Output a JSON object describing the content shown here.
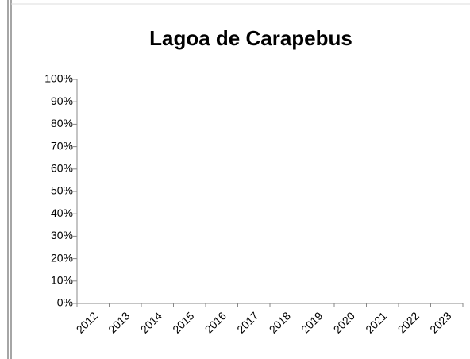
{
  "chart_data": {
    "type": "bar",
    "title": "Lagoa de Carapebus",
    "categories": [
      "2012",
      "2013",
      "2014",
      "2015",
      "2016",
      "2017",
      "2018",
      "2019",
      "2020",
      "2021",
      "2022",
      "2023"
    ],
    "ylim": [
      0,
      100
    ],
    "yticks": [
      {
        "value": 0,
        "label": "0%"
      },
      {
        "value": 10,
        "label": "10%"
      },
      {
        "value": 20,
        "label": "20%"
      },
      {
        "value": 30,
        "label": "30%"
      },
      {
        "value": 40,
        "label": "40%"
      },
      {
        "value": 50,
        "label": "50%"
      },
      {
        "value": 60,
        "label": "60%"
      },
      {
        "value": 70,
        "label": "70%"
      },
      {
        "value": 80,
        "label": "80%"
      },
      {
        "value": 90,
        "label": "90%"
      },
      {
        "value": 100,
        "label": "100%"
      }
    ],
    "grid": false
  }
}
